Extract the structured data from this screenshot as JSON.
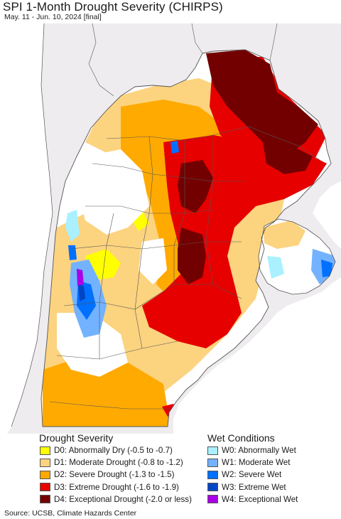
{
  "header": {
    "title": "SPI 1-Month Drought Severity (CHIRPS)",
    "subtitle": "May. 11 - Jun. 10, 2024 [final]"
  },
  "legend": {
    "drought": {
      "title": "Drought Severity",
      "items": [
        {
          "label": "D0: Abnormally Dry (-0.5 to -0.7)",
          "color": "#ffff00"
        },
        {
          "label": "D1: Moderate Drought (-0.8 to -1.2)",
          "color": "#fcd37f"
        },
        {
          "label": "D2: Severe Drought (-1.3 to -1.5)",
          "color": "#ffaa00"
        },
        {
          "label": "D3: Extreme Drought (-1.6 to -1.9)",
          "color": "#e60000"
        },
        {
          "label": "D4: Exceptional Drought (-2.0 or less)",
          "color": "#730000"
        }
      ]
    },
    "wet": {
      "title": "Wet Conditions",
      "items": [
        {
          "label": "W0: Abnormally Wet",
          "color": "#aaf0ff"
        },
        {
          "label": "W1: Moderate Wet",
          "color": "#73b2ff"
        },
        {
          "label": "W2: Severe Wet",
          "color": "#0070ff"
        },
        {
          "label": "W3: Extreme Wet",
          "color": "#0045c4"
        },
        {
          "label": "W4: Exceptional Wet",
          "color": "#a900e6"
        }
      ]
    }
  },
  "map": {
    "ocean_color": "#b9d9ec",
    "outside_land_color": "#eeecef",
    "border_color": "#555555"
  },
  "footer": {
    "source": "Source: UCSB, Climate Hazards Center"
  }
}
